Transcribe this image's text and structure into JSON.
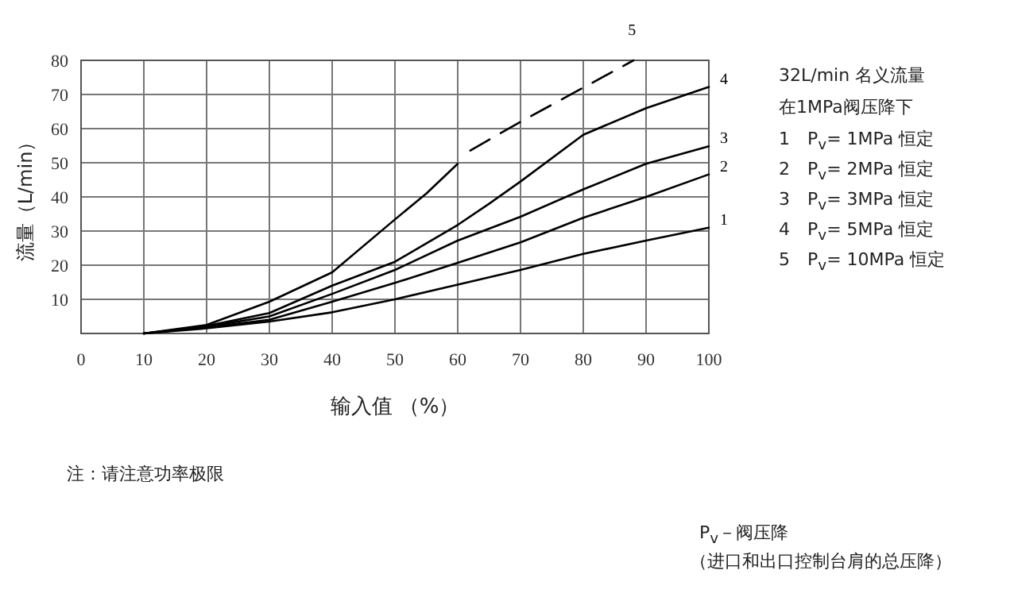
{
  "chart_data": {
    "type": "line",
    "xlabel": "输入值 （%）",
    "ylabel": "流量（L/min）",
    "xlim": [
      0,
      100
    ],
    "ylim": [
      0,
      80
    ],
    "xticks": [
      0,
      10,
      20,
      30,
      40,
      50,
      60,
      70,
      80,
      90,
      100
    ],
    "yticks": [
      10,
      20,
      30,
      40,
      50,
      60,
      70,
      80
    ],
    "grid": true,
    "marker": "none",
    "series": [
      {
        "name": "1",
        "color": "#000000",
        "line_style": "solid",
        "x": [
          10,
          20,
          30,
          40,
          50,
          60,
          70,
          80,
          90,
          100
        ],
        "values": [
          0,
          1.5,
          3.5,
          6.2,
          10,
          14.3,
          18.6,
          23.3,
          27.2,
          31
        ]
      },
      {
        "name": "2",
        "color": "#000000",
        "line_style": "solid",
        "x": [
          10,
          20,
          30,
          40,
          50,
          60,
          70,
          80,
          90,
          100
        ],
        "values": [
          0,
          1.8,
          4,
          9.3,
          14.8,
          20.7,
          26.7,
          33.9,
          40,
          46.6
        ]
      },
      {
        "name": "3",
        "color": "#000000",
        "line_style": "solid",
        "x": [
          10,
          20,
          30,
          40,
          50,
          60,
          70,
          80,
          90,
          100
        ],
        "values": [
          0,
          2,
          5,
          11.6,
          18.6,
          27.2,
          34.2,
          42.2,
          49.7,
          54.8
        ]
      },
      {
        "name": "4",
        "color": "#000000",
        "line_style": "solid",
        "x": [
          10,
          20,
          30,
          40,
          50,
          60,
          65,
          70,
          80,
          90,
          100
        ],
        "values": [
          0,
          2.2,
          6,
          14,
          21,
          31.8,
          38,
          44.5,
          58.2,
          66,
          72.2
        ]
      },
      {
        "color": "#000000",
        "line_style": "solid",
        "x": [
          10,
          20,
          30,
          40,
          50,
          55,
          60
        ],
        "values": [
          0,
          2.5,
          9.3,
          17.9,
          33.4,
          41,
          49.7
        ]
      },
      {
        "name": "5",
        "color": "#000000",
        "line_style": "dashed",
        "x": [
          62,
          70,
          80,
          88
        ],
        "values": [
          53.6,
          62,
          72,
          80
        ]
      }
    ],
    "annotations": [
      "32L/min 名义流量",
      "在1MPa阀压降下",
      "1　P$_{v}$= 1MPa 恒定",
      "2　P$_{v}$= 2MPa 恒定",
      "3　P$_{v}$= 3MPa 恒定",
      "4　P$_{v}$= 5MPa 恒定",
      "5　P$_{v}$= 10MPa 恒定",
      "注：请注意功率极限",
      "P$_{v}$－阀压降",
      "（进口和出口控制台肩的总压降）"
    ]
  }
}
